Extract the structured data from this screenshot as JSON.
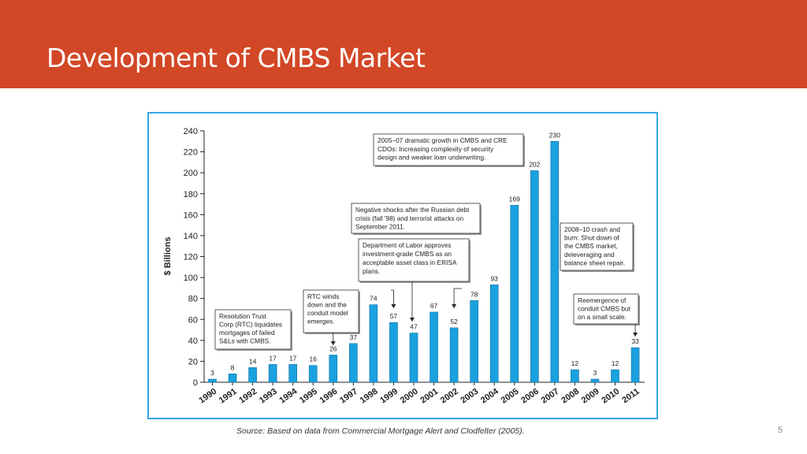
{
  "slide": {
    "title": "Development of CMBS Market",
    "source": "Source: Based on data from Commercial Mortgage Alert and Clodfelter (2005).",
    "page_number": "5"
  },
  "colors": {
    "header": "#d24726",
    "bar": "#1aa1df",
    "frame": "#35a7e0"
  },
  "chart_data": {
    "type": "bar",
    "title": "",
    "xlabel": "",
    "ylabel": "$ Billions",
    "ylim": [
      0,
      240
    ],
    "yticks": [
      0,
      20,
      40,
      60,
      80,
      100,
      120,
      140,
      160,
      180,
      200,
      220,
      240
    ],
    "categories": [
      "1990",
      "1991",
      "1992",
      "1993",
      "1994",
      "1995",
      "1996",
      "1997",
      "1998",
      "1999",
      "2000",
      "2001",
      "2002",
      "2003",
      "2004",
      "2005",
      "2006",
      "2007",
      "2008",
      "2009",
      "2010",
      "2011"
    ],
    "values": [
      3,
      8,
      14,
      17,
      17,
      16,
      26,
      37,
      74,
      57,
      47,
      67,
      52,
      78,
      93,
      169,
      202,
      230,
      12,
      3,
      12,
      33
    ],
    "annotations": [
      {
        "lines": [
          "Resolution Trust",
          "Corp (RTC) liquidates",
          "mortgages of failed",
          "S&Ls with CMBS."
        ]
      },
      {
        "lines": [
          "RTC winds",
          "down and the",
          "conduit model",
          "emerges."
        ]
      },
      {
        "lines": [
          "Department of Labor approves",
          "investment-grade CMBS as an",
          "acceptable asset class in ERISA",
          "plans."
        ]
      },
      {
        "lines": [
          "Negative shocks after the Russian debt",
          "crisis (fall '98) and terrorist attacks on",
          "September 2011."
        ]
      },
      {
        "lines": [
          "2005–07 dramatic growth in CMBS and CRE",
          "CDOs: Increasing complexity of security",
          "design and weaker loan underwriting."
        ]
      },
      {
        "lines": [
          "2008–10 crash and",
          "burn: Shut down of",
          "the CMBS market,",
          "deleveraging and",
          "balance sheet repair."
        ]
      },
      {
        "lines": [
          "Reemergence of",
          "conduit CMBS but",
          "on a small scale."
        ]
      }
    ]
  }
}
